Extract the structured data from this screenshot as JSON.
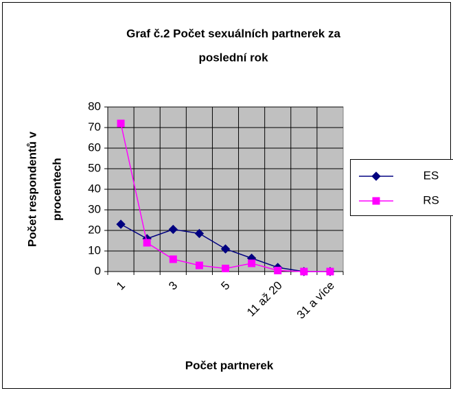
{
  "chart_data": {
    "type": "line",
    "title": [
      "Graf č.2 Počet sexuálních partnerek za",
      "poslední rok"
    ],
    "y_label": [
      "Počet respondentů v",
      "procentech"
    ],
    "x_label": "Počet partnerek",
    "categories": [
      "1",
      null,
      "3",
      null,
      "5",
      null,
      "11 až 20",
      null,
      "31 a více"
    ],
    "series": [
      {
        "name": "ES",
        "color": "#000080",
        "marker": "diamond",
        "values": [
          23,
          16,
          20.5,
          18.5,
          11,
          6.5,
          2,
          0,
          0
        ]
      },
      {
        "name": "RS",
        "color": "#ff00ff",
        "marker": "square",
        "values": [
          72,
          14,
          6,
          3,
          1.5,
          4,
          0.5,
          0,
          0
        ]
      }
    ],
    "ylim": [
      0,
      80
    ],
    "yticks": [
      0,
      10,
      20,
      30,
      40,
      50,
      60,
      70,
      80
    ],
    "grid": true,
    "legend": "right"
  }
}
